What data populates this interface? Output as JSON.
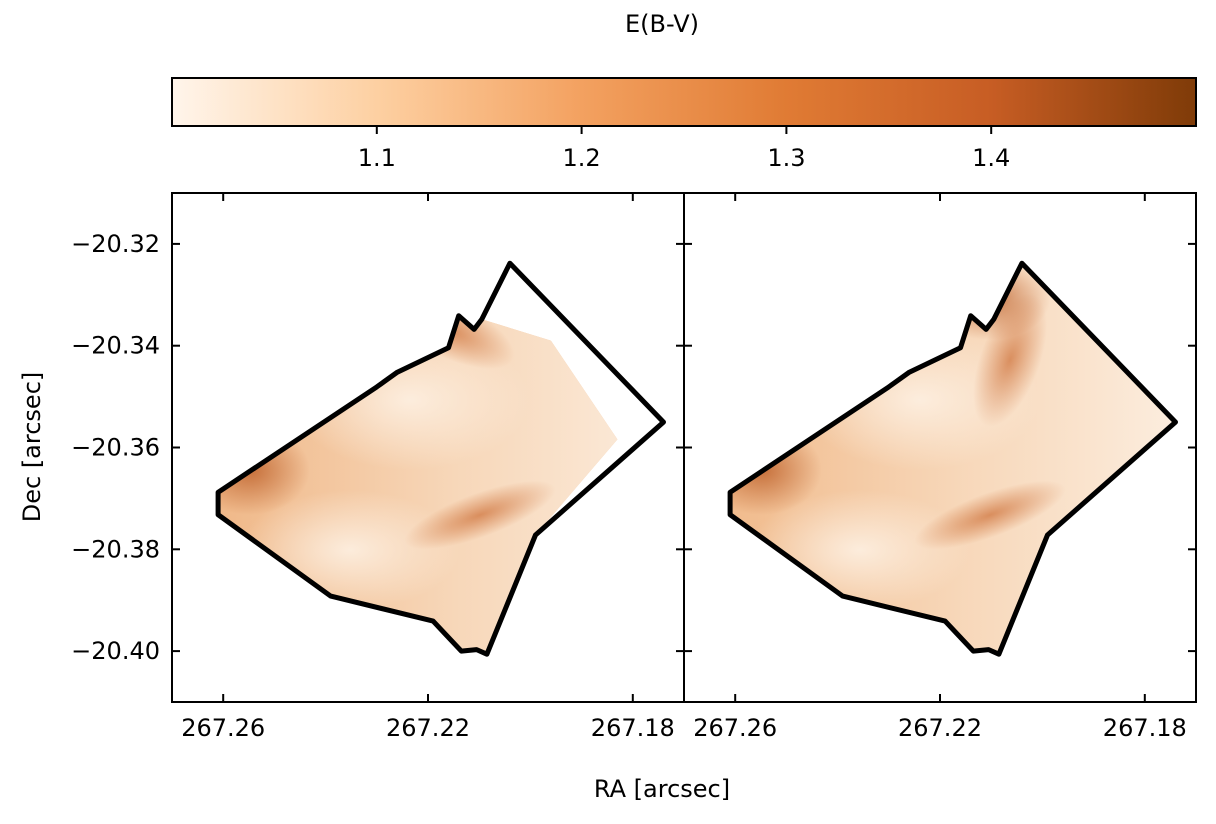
{
  "chart_data": [
    {
      "type": "heatmap",
      "xlabel": "RA [arcsec]",
      "ylabel": "Dec [arcsec]",
      "colorbar_label": "E(B-V)",
      "colorbar_range": [
        1.0,
        1.5
      ],
      "colorbar_ticks": [
        1.1,
        1.2,
        1.3,
        1.4
      ],
      "colorbar_tick_labels": [
        "1.1",
        "1.2",
        "1.3",
        "1.4"
      ],
      "colormap": [
        "#fff5eb",
        "#fdd0a2",
        "#f3a160",
        "#e07b34",
        "#c75d24",
        "#7f3b08"
      ],
      "xlim": [
        267.27,
        267.17
      ],
      "ylim": [
        -20.41,
        -20.31
      ],
      "x_ticks": [
        267.26,
        267.22,
        267.18
      ],
      "x_tick_labels": [
        "267.26",
        "267.22",
        "267.18"
      ],
      "y_ticks": [
        -20.32,
        -20.34,
        -20.36,
        -20.38,
        -20.4
      ],
      "y_tick_labels": [
        "−20.32",
        "−20.34",
        "−20.36",
        "−20.38",
        "−20.40"
      ],
      "panels": [
        {
          "name": "left",
          "outline": [
            [
              267.261,
              -20.3688
            ],
            [
              267.23,
              -20.3481
            ],
            [
              267.226,
              -20.3452
            ],
            [
              267.216,
              -20.3404
            ],
            [
              267.214,
              -20.3341
            ],
            [
              267.211,
              -20.3368
            ],
            [
              267.2095,
              -20.3348
            ],
            [
              267.204,
              -20.3238
            ],
            [
              267.174,
              -20.355
            ],
            [
              267.199,
              -20.3772
            ],
            [
              267.2085,
              -20.4006
            ],
            [
              267.2105,
              -20.3997
            ],
            [
              267.2135,
              -20.4
            ],
            [
              267.219,
              -20.3941
            ],
            [
              267.239,
              -20.3892
            ],
            [
              267.261,
              -20.3732
            ]
          ],
          "data_region": [
            [
              267.261,
              -20.3688
            ],
            [
              267.23,
              -20.3481
            ],
            [
              267.226,
              -20.3452
            ],
            [
              267.216,
              -20.3404
            ],
            [
              267.214,
              -20.3341
            ],
            [
              267.211,
              -20.3368
            ],
            [
              267.2095,
              -20.3348
            ],
            [
              267.196,
              -20.339
            ],
            [
              267.183,
              -20.3584
            ],
            [
              267.199,
              -20.3772
            ],
            [
              267.2085,
              -20.4006
            ],
            [
              267.2105,
              -20.3997
            ],
            [
              267.2135,
              -20.4
            ],
            [
              267.219,
              -20.3941
            ],
            [
              267.239,
              -20.3892
            ],
            [
              267.261,
              -20.3732
            ]
          ]
        },
        {
          "name": "right",
          "outline": [
            [
              267.261,
              -20.3688
            ],
            [
              267.23,
              -20.3481
            ],
            [
              267.226,
              -20.3452
            ],
            [
              267.216,
              -20.3404
            ],
            [
              267.214,
              -20.3341
            ],
            [
              267.211,
              -20.3368
            ],
            [
              267.2095,
              -20.3348
            ],
            [
              267.204,
              -20.3238
            ],
            [
              267.174,
              -20.355
            ],
            [
              267.199,
              -20.3772
            ],
            [
              267.2085,
              -20.4006
            ],
            [
              267.2105,
              -20.3997
            ],
            [
              267.2135,
              -20.4
            ],
            [
              267.219,
              -20.3941
            ],
            [
              267.239,
              -20.3892
            ],
            [
              267.261,
              -20.3732
            ]
          ],
          "data_region": [
            [
              267.261,
              -20.3688
            ],
            [
              267.23,
              -20.3481
            ],
            [
              267.226,
              -20.3452
            ],
            [
              267.216,
              -20.3404
            ],
            [
              267.214,
              -20.3341
            ],
            [
              267.211,
              -20.3368
            ],
            [
              267.2095,
              -20.3348
            ],
            [
              267.204,
              -20.3238
            ],
            [
              267.174,
              -20.355
            ],
            [
              267.199,
              -20.3772
            ],
            [
              267.2085,
              -20.4006
            ],
            [
              267.2105,
              -20.3997
            ],
            [
              267.2135,
              -20.4
            ],
            [
              267.219,
              -20.3941
            ],
            [
              267.239,
              -20.3892
            ],
            [
              267.261,
              -20.3732
            ]
          ]
        }
      ]
    }
  ]
}
